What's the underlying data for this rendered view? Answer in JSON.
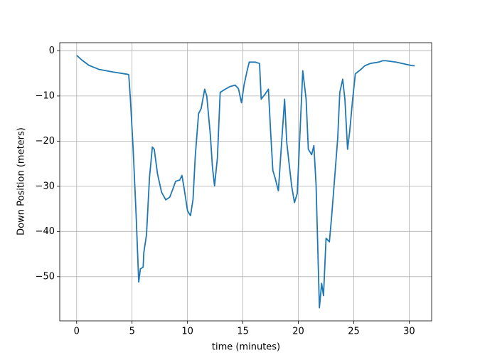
{
  "chart_data": {
    "type": "line",
    "xlabel": "time (minutes)",
    "ylabel": "Down Position (meters)",
    "x": [
      0,
      0.45,
      1.1,
      2.0,
      3.3,
      4.6,
      4.7,
      4.85,
      5.1,
      5.36,
      5.6,
      5.75,
      6.0,
      6.06,
      6.3,
      6.57,
      6.83,
      7.0,
      7.3,
      7.66,
      8.04,
      8.4,
      8.68,
      8.93,
      9.3,
      9.5,
      9.7,
      10.0,
      10.27,
      10.5,
      10.7,
      11.0,
      11.23,
      11.55,
      11.74,
      12.06,
      12.25,
      12.44,
      12.7,
      12.95,
      13.4,
      13.85,
      14.3,
      14.6,
      14.87,
      15.1,
      15.38,
      15.57,
      16.1,
      16.5,
      16.65,
      17.0,
      17.3,
      17.5,
      17.7,
      17.9,
      18.2,
      18.45,
      18.76,
      18.95,
      19.2,
      19.4,
      19.65,
      19.9,
      20.17,
      20.4,
      20.7,
      20.9,
      21.2,
      21.4,
      21.6,
      21.9,
      22.1,
      22.27,
      22.5,
      22.8,
      23.0,
      23.2,
      23.55,
      23.74,
      24.0,
      24.2,
      24.44,
      24.63,
      24.9,
      25.14,
      25.65,
      26.0,
      26.5,
      27.25,
      27.6,
      27.9,
      28.8,
      30.3,
      30.5
    ],
    "series": [
      {
        "name": "down",
        "color": "#1f77b4",
        "values": [
          -1,
          -2,
          -3.2,
          -4.1,
          -4.7,
          -5.2,
          -5.3,
          -10.7,
          -21.8,
          -36,
          -51.2,
          -48.3,
          -47.9,
          -44.7,
          -40.8,
          -28.1,
          -21.3,
          -21.8,
          -27.3,
          -31.3,
          -33,
          -32.4,
          -30.6,
          -28.9,
          -28.6,
          -27.6,
          -30.5,
          -35.4,
          -36.5,
          -32.9,
          -23.4,
          -13.9,
          -12.8,
          -8.5,
          -10,
          -18.6,
          -25.7,
          -29.9,
          -23.7,
          -9.2,
          -8.5,
          -7.9,
          -7.6,
          -8.4,
          -11.5,
          -7.6,
          -4.4,
          -2.5,
          -2.5,
          -2.8,
          -10.7,
          -9.6,
          -8.5,
          -17.9,
          -26.5,
          -28.1,
          -31,
          -21.8,
          -10.7,
          -20.2,
          -25.7,
          -30,
          -33.6,
          -31.6,
          -17,
          -4.4,
          -10.7,
          -21.8,
          -23,
          -21,
          -29.7,
          -56.9,
          -51.5,
          -54.2,
          -41.5,
          -42.3,
          -36.8,
          -30.5,
          -19.4,
          -9.2,
          -6.3,
          -10.7,
          -21.8,
          -17.9,
          -10.7,
          -5.1,
          -4.1,
          -3.3,
          -2.8,
          -2.5,
          -2.2,
          -2.2,
          -2.5,
          -3.3,
          -3.3
        ]
      }
    ],
    "xlim": [
      -1.525,
      32.025
    ],
    "ylim": [
      -59.8,
      1.8
    ],
    "xticks": [
      0,
      5,
      10,
      15,
      20,
      25,
      30
    ],
    "yticks": [
      0,
      {
        "value": -10,
        "label": "−10"
      },
      {
        "value": -20,
        "label": "−20"
      },
      {
        "value": -30,
        "label": "−30"
      },
      {
        "value": -40,
        "label": "−40"
      },
      {
        "value": -50,
        "label": "−50"
      }
    ],
    "grid": true
  }
}
